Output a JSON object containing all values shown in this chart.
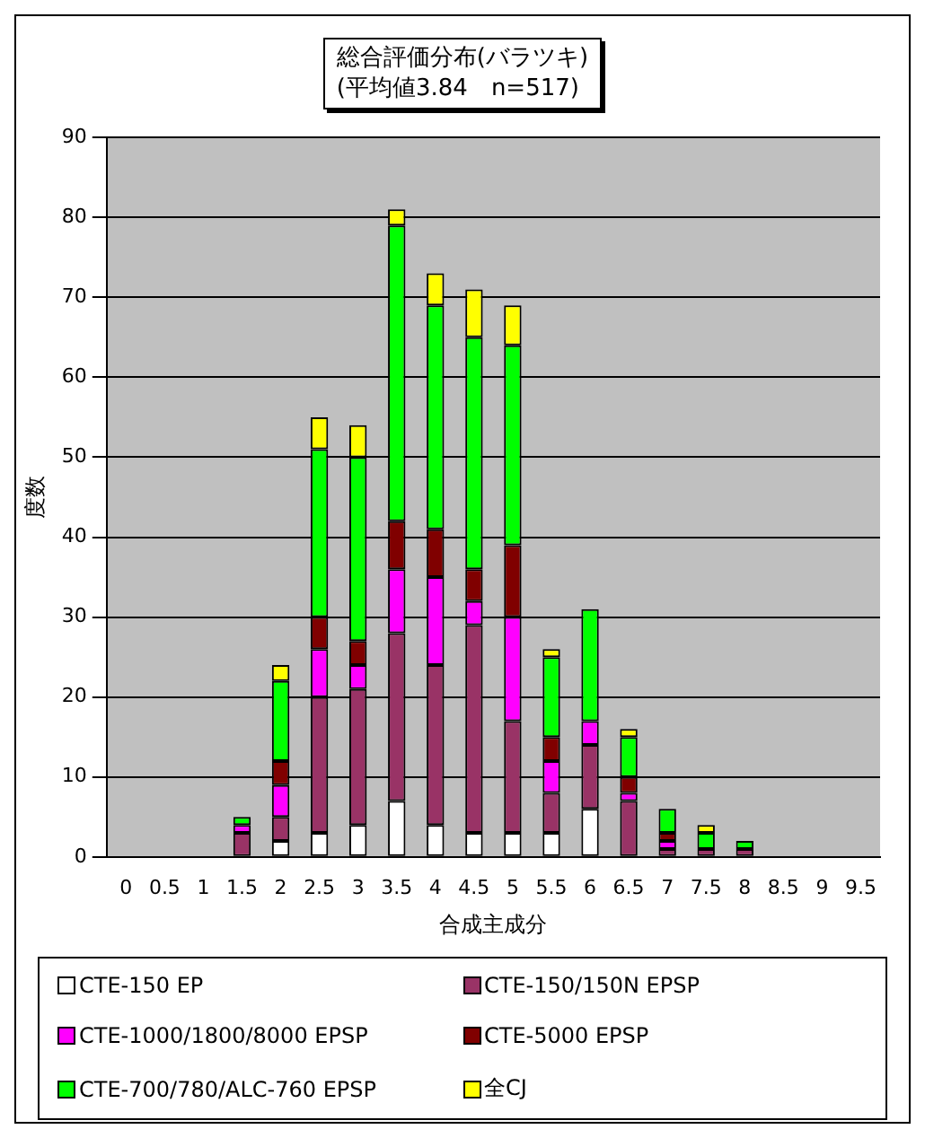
{
  "chart_data": {
    "type": "bar",
    "title": "総合評価分布(バラツキ)",
    "subtitle": "(平均値3.84　n=517)",
    "xlabel": "合成主成分",
    "ylabel": "度数",
    "categories": [
      "0",
      "0.5",
      "1",
      "1.5",
      "2",
      "2.5",
      "3",
      "3.5",
      "4",
      "4.5",
      "5",
      "5.5",
      "6",
      "6.5",
      "7",
      "7.5",
      "8",
      "8.5",
      "9",
      "9.5"
    ],
    "stacked": true,
    "ylim": [
      0,
      90
    ],
    "yticks": [
      0,
      10,
      20,
      30,
      40,
      50,
      60,
      70,
      80,
      90
    ],
    "grid": "y",
    "legend": "bottom",
    "series": [
      {
        "name": "CTE-150 EP",
        "color": "#ffffff",
        "values": [
          0,
          0,
          0,
          0,
          2,
          3,
          4,
          7,
          4,
          3,
          3,
          3,
          6,
          0,
          0,
          0,
          0,
          0,
          0,
          0
        ]
      },
      {
        "name": "CTE-150/150N EPSP",
        "color": "#993366",
        "values": [
          0,
          0,
          0,
          3,
          3,
          17,
          17,
          21,
          20,
          26,
          14,
          5,
          8,
          7,
          1,
          1,
          1,
          0,
          0,
          0
        ]
      },
      {
        "name": "CTE-1000/1800/8000 EPSP",
        "color": "#ff00ff",
        "values": [
          0,
          0,
          0,
          1,
          4,
          6,
          3,
          8,
          11,
          3,
          13,
          4,
          3,
          1,
          1,
          0,
          0,
          0,
          0,
          0
        ]
      },
      {
        "name": "CTE-5000 EPSP",
        "color": "#800000",
        "values": [
          0,
          0,
          0,
          0,
          3,
          4,
          3,
          6,
          6,
          4,
          9,
          3,
          0,
          2,
          1,
          0,
          0,
          0,
          0,
          0
        ]
      },
      {
        "name": "CTE-700/780/ALC-760 EPSP",
        "color": "#00ff00",
        "values": [
          0,
          0,
          0,
          1,
          10,
          21,
          23,
          37,
          28,
          29,
          25,
          10,
          14,
          5,
          3,
          2,
          1,
          0,
          0,
          0
        ]
      },
      {
        "name": "全CJ",
        "color": "#ffff00",
        "values": [
          0,
          0,
          0,
          0,
          2,
          4,
          4,
          2,
          4,
          6,
          5,
          1,
          0,
          1,
          0,
          1,
          0,
          0,
          0,
          0
        ]
      }
    ]
  }
}
